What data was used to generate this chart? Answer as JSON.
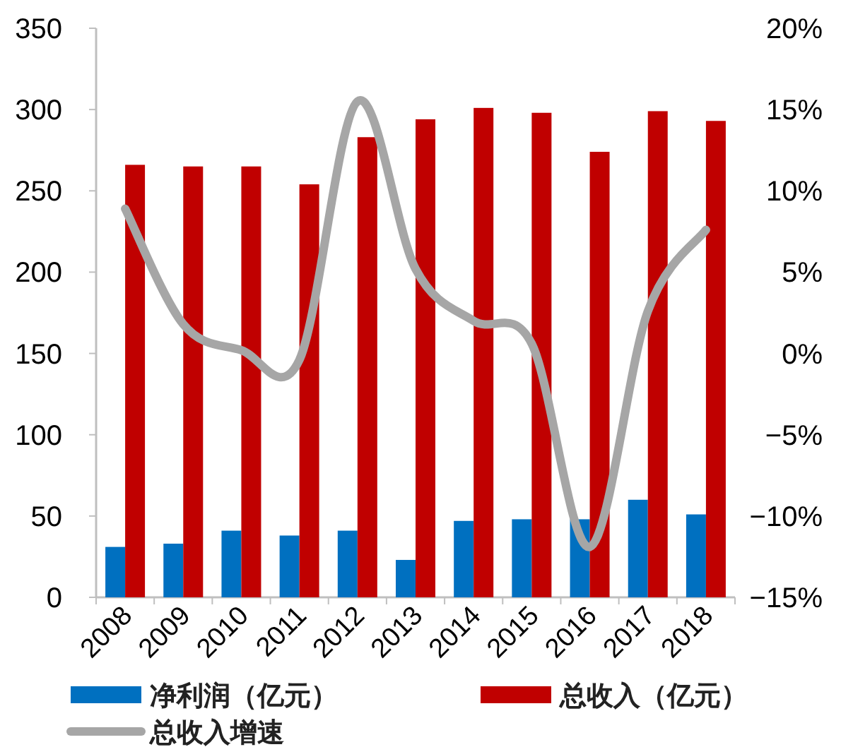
{
  "chart_data": {
    "type": "bar",
    "categories": [
      "2008",
      "2009",
      "2010",
      "2011",
      "2012",
      "2013",
      "2014",
      "2015",
      "2016",
      "2017",
      "2018"
    ],
    "series": [
      {
        "name": "净利润（亿元）",
        "color": "#0070c0",
        "values": [
          31,
          33,
          41,
          38,
          41,
          23,
          47,
          48,
          48,
          60,
          51
        ]
      },
      {
        "name": "总收入（亿元）",
        "color": "#c00000",
        "values": [
          266,
          265,
          265,
          254,
          283,
          294,
          301,
          298,
          274,
          299,
          293
        ]
      },
      {
        "name": "总收入增速",
        "type": "line",
        "axis": "y2",
        "color": "#a6a6a6",
        "values": [
          8.9,
          1.8,
          0.2,
          -0.4,
          15.5,
          5.2,
          2.0,
          0.6,
          -11.9,
          2.6,
          7.6
        ]
      }
    ],
    "ylim": [
      0,
      350
    ],
    "yticks": [
      0,
      50,
      100,
      150,
      200,
      250,
      300,
      350
    ],
    "y2lim": [
      -15,
      20
    ],
    "y2ticks": [
      {
        "value": -15,
        "label": "−15%"
      },
      {
        "value": -10,
        "label": "−10%"
      },
      {
        "value": -5,
        "label": "−5%"
      },
      {
        "value": 0,
        "label": "0%"
      },
      {
        "value": 5,
        "label": "5%"
      },
      {
        "value": 10,
        "label": "10%"
      },
      {
        "value": 15,
        "label": "15%"
      },
      {
        "value": 20,
        "label": "20%"
      }
    ],
    "legend": "bottom",
    "grid": false
  }
}
